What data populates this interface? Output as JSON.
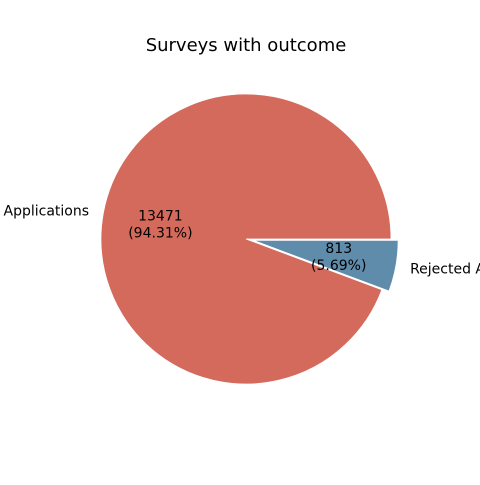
{
  "chart_data": {
    "type": "pie",
    "title": "Surveys with outcome",
    "slices": [
      {
        "label": "Accepted Applications",
        "shown_label": "Applications",
        "value": 13471,
        "value_label": "13471",
        "percent_label": "(94.31%)",
        "color": "#d46a5c",
        "explode": 0
      },
      {
        "label": "Rejected Applications",
        "shown_label": "Rejected A",
        "value": 813,
        "value_label": "813",
        "percent_label": "(5.69%)",
        "color": "#5f8cab",
        "explode": 0.05
      }
    ],
    "start_angle_deg": 0,
    "direction": "counterclockwise"
  }
}
